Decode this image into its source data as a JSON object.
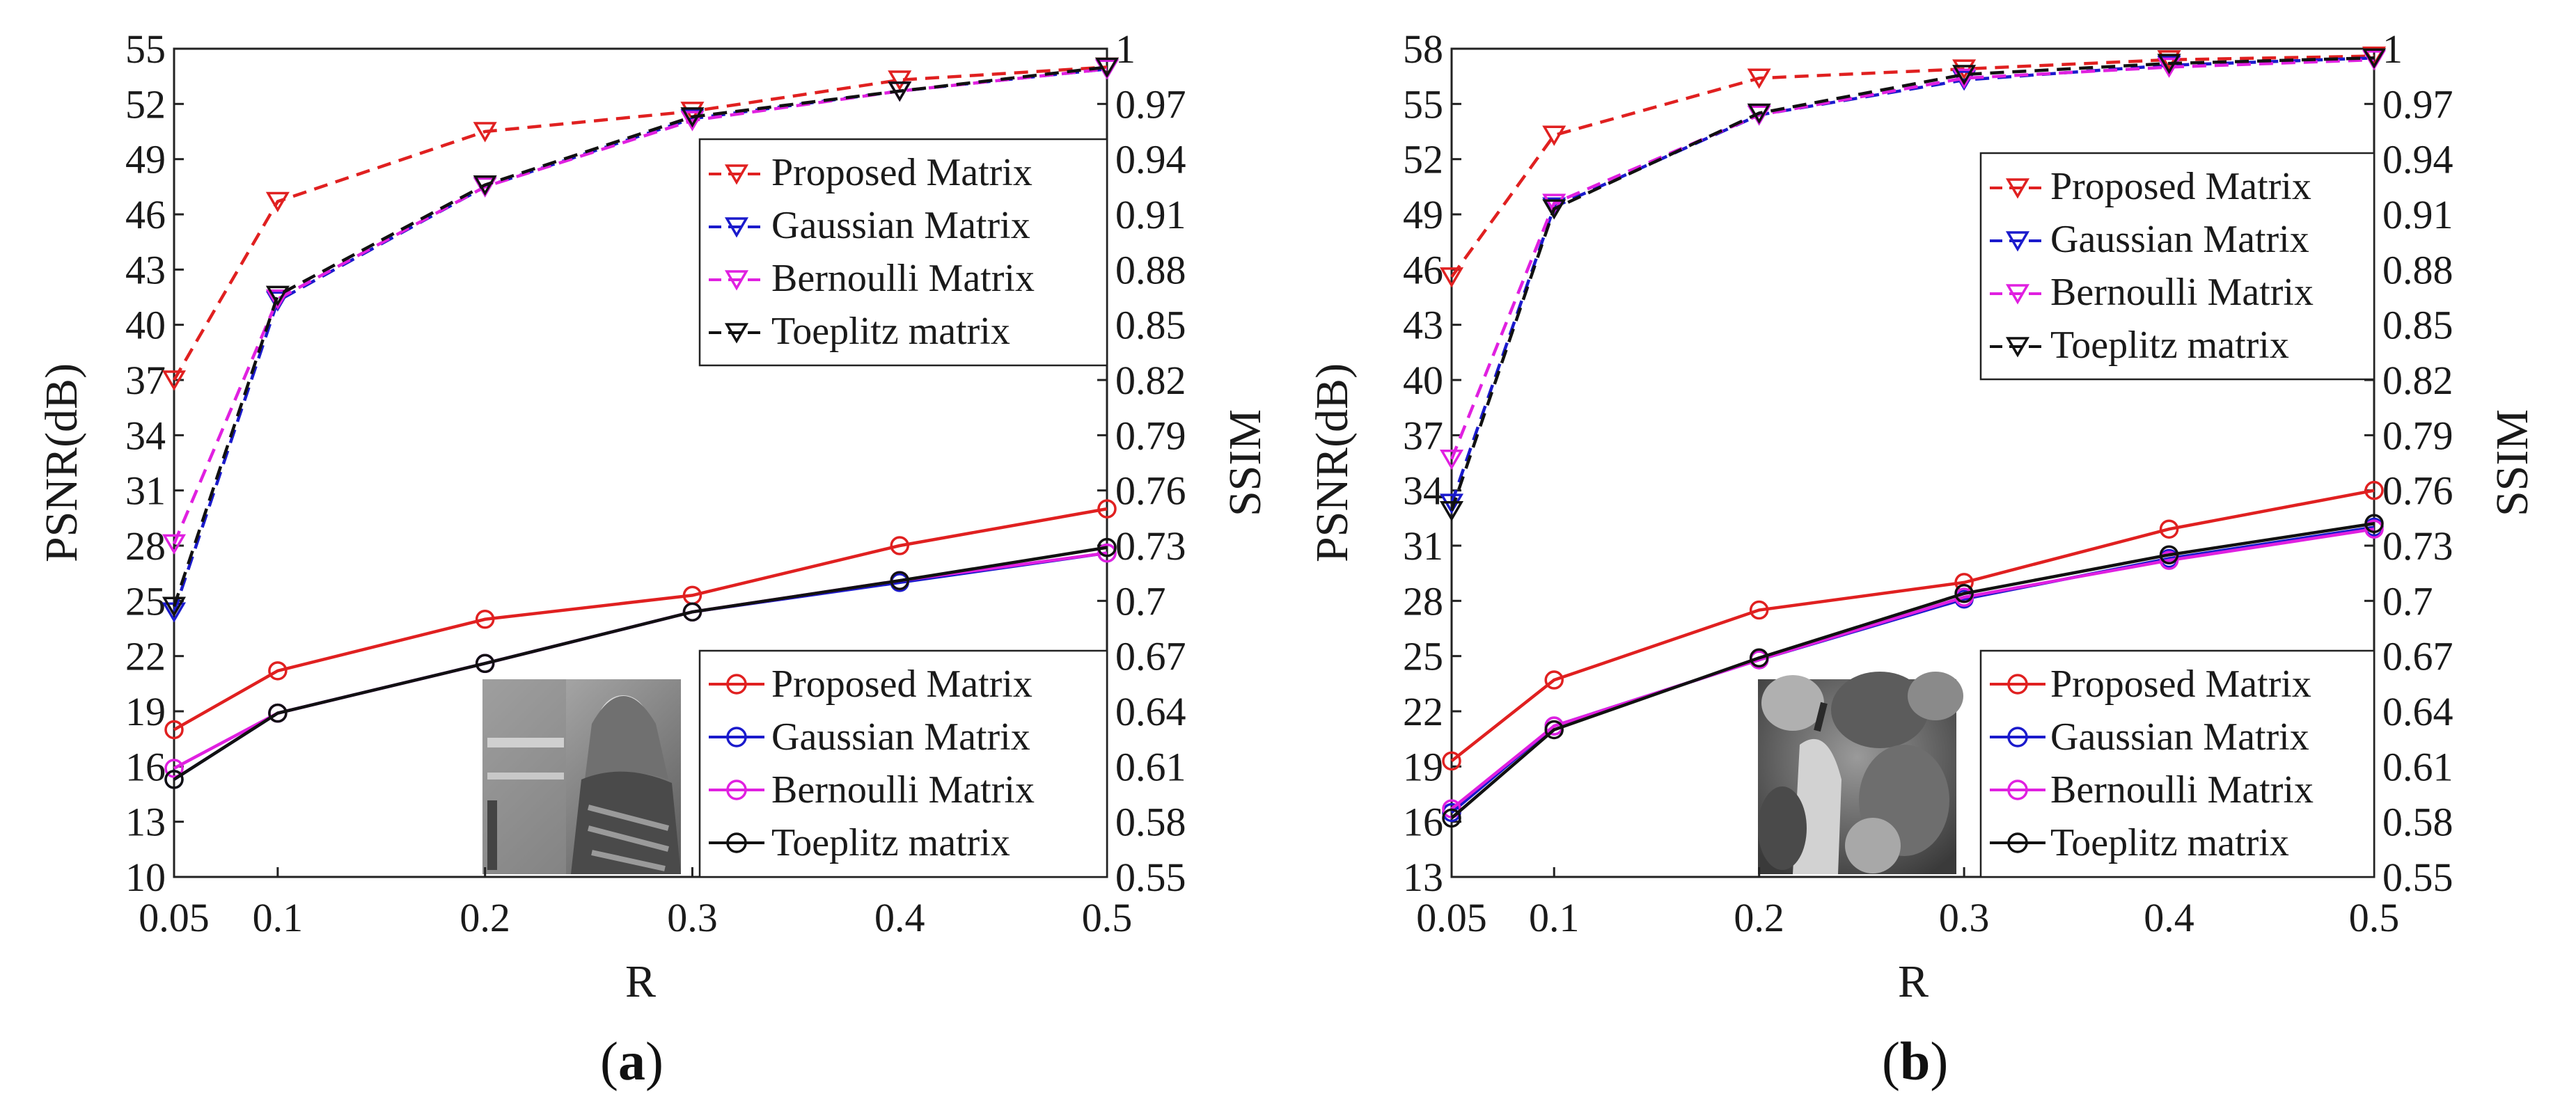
{
  "chart_data": [
    {
      "type": "line",
      "panel_label": "a",
      "xlabel": "R",
      "ylabel_left": "PSNR(dB)",
      "ylabel_right": "SSIM",
      "x": [
        0.05,
        0.1,
        0.2,
        0.3,
        0.4,
        0.5
      ],
      "xtick_labels": [
        "0.05",
        "0.1",
        "0.2",
        "0.3",
        "0.4",
        "0.5"
      ],
      "ylim_left": [
        10,
        55
      ],
      "yticks_left": [
        "10",
        "13",
        "16",
        "19",
        "22",
        "25",
        "28",
        "31",
        "34",
        "37",
        "40",
        "43",
        "46",
        "49",
        "52",
        "55"
      ],
      "ylim_right": [
        0.55,
        1
      ],
      "yticks_right": [
        "0.55",
        "0.58",
        "0.61",
        "0.64",
        "0.67",
        "0.7",
        "0.73",
        "0.76",
        "0.79",
        "0.82",
        "0.85",
        "0.88",
        "0.91",
        "0.94",
        "0.97",
        "1"
      ],
      "inset_image": "grayscale photo of a woman wearing a headscarf",
      "psnr_series": [
        {
          "name": "Proposed Matrix",
          "color": "#e02020",
          "values": [
            18.0,
            21.2,
            24.0,
            25.3,
            28.0,
            30.0
          ]
        },
        {
          "name": "Gaussian Matrix",
          "color": "#1a1acc",
          "values": [
            15.3,
            18.9,
            21.6,
            24.4,
            26.0,
            27.6
          ]
        },
        {
          "name": "Bernoulli Matrix",
          "color": "#e020e0",
          "values": [
            15.9,
            18.9,
            21.6,
            24.4,
            26.1,
            27.6
          ]
        },
        {
          "name": "Toeplitz matrix",
          "color": "#111111",
          "values": [
            15.3,
            18.9,
            21.6,
            24.4,
            26.1,
            27.9
          ]
        }
      ],
      "ssim_series": [
        {
          "name": "Proposed Matrix",
          "color": "#e02020",
          "values": [
            0.82,
            0.917,
            0.955,
            0.966,
            0.983,
            0.99
          ]
        },
        {
          "name": "Gaussian Matrix",
          "color": "#1a1acc",
          "values": [
            0.694,
            0.863,
            0.925,
            0.962,
            0.977,
            0.989
          ]
        },
        {
          "name": "Bernoulli Matrix",
          "color": "#e020e0",
          "values": [
            0.731,
            0.864,
            0.925,
            0.961,
            0.977,
            0.989
          ]
        },
        {
          "name": "Toeplitz matrix",
          "color": "#111111",
          "values": [
            0.697,
            0.866,
            0.926,
            0.963,
            0.977,
            0.99
          ]
        }
      ],
      "legend_top": [
        "Proposed Matrix",
        "Gaussian Matrix",
        "Bernoulli Matrix",
        "Toeplitz matrix"
      ],
      "legend_bottom": [
        "Proposed Matrix",
        "Gaussian Matrix",
        "Bernoulli Matrix",
        "Toeplitz matrix"
      ]
    },
    {
      "type": "line",
      "panel_label": "b",
      "xlabel": "R",
      "ylabel_left": "PSNR(dB)",
      "ylabel_right": "SSIM",
      "x": [
        0.05,
        0.1,
        0.2,
        0.3,
        0.4,
        0.5
      ],
      "xtick_labels": [
        "0.05",
        "0.1",
        "0.2",
        "0.3",
        "0.4",
        "0.5"
      ],
      "ylim_left": [
        13,
        58
      ],
      "yticks_left": [
        "13",
        "16",
        "19",
        "22",
        "25",
        "28",
        "31",
        "34",
        "37",
        "40",
        "43",
        "46",
        "49",
        "52",
        "55",
        "58"
      ],
      "ylim_right": [
        0.55,
        1
      ],
      "yticks_right": [
        "0.55",
        "0.58",
        "0.61",
        "0.64",
        "0.67",
        "0.7",
        "0.73",
        "0.76",
        "0.79",
        "0.82",
        "0.85",
        "0.88",
        "0.91",
        "0.94",
        "0.97",
        "1"
      ],
      "inset_image": "grayscale photo of peppers",
      "psnr_series": [
        {
          "name": "Proposed Matrix",
          "color": "#e02020",
          "values": [
            19.3,
            23.7,
            27.5,
            29.0,
            31.9,
            34.0
          ]
        },
        {
          "name": "Gaussian Matrix",
          "color": "#1a1acc",
          "values": [
            16.5,
            21.2,
            24.8,
            28.1,
            30.3,
            32.0
          ]
        },
        {
          "name": "Bernoulli Matrix",
          "color": "#e020e0",
          "values": [
            16.7,
            21.2,
            24.8,
            28.2,
            30.2,
            31.9
          ]
        },
        {
          "name": "Toeplitz matrix",
          "color": "#111111",
          "values": [
            16.2,
            21.0,
            24.9,
            28.4,
            30.5,
            32.2
          ]
        }
      ],
      "ssim_series": [
        {
          "name": "Proposed Matrix",
          "color": "#e02020",
          "values": [
            0.876,
            0.953,
            0.984,
            0.989,
            0.994,
            0.996
          ]
        },
        {
          "name": "Gaussian Matrix",
          "color": "#1a1acc",
          "values": [
            0.753,
            0.914,
            0.964,
            0.983,
            0.991,
            0.995
          ]
        },
        {
          "name": "Bernoulli Matrix",
          "color": "#e020e0",
          "values": [
            0.777,
            0.916,
            0.964,
            0.984,
            0.99,
            0.994
          ]
        },
        {
          "name": "Toeplitz matrix",
          "color": "#111111",
          "values": [
            0.749,
            0.913,
            0.965,
            0.986,
            0.992,
            0.995
          ]
        }
      ],
      "legend_top": [
        "Proposed Matrix",
        "Gaussian Matrix",
        "Bernoulli Matrix",
        "Toeplitz matrix"
      ],
      "legend_bottom": [
        "Proposed Matrix",
        "Gaussian Matrix",
        "Bernoulli Matrix",
        "Toeplitz matrix"
      ]
    }
  ]
}
